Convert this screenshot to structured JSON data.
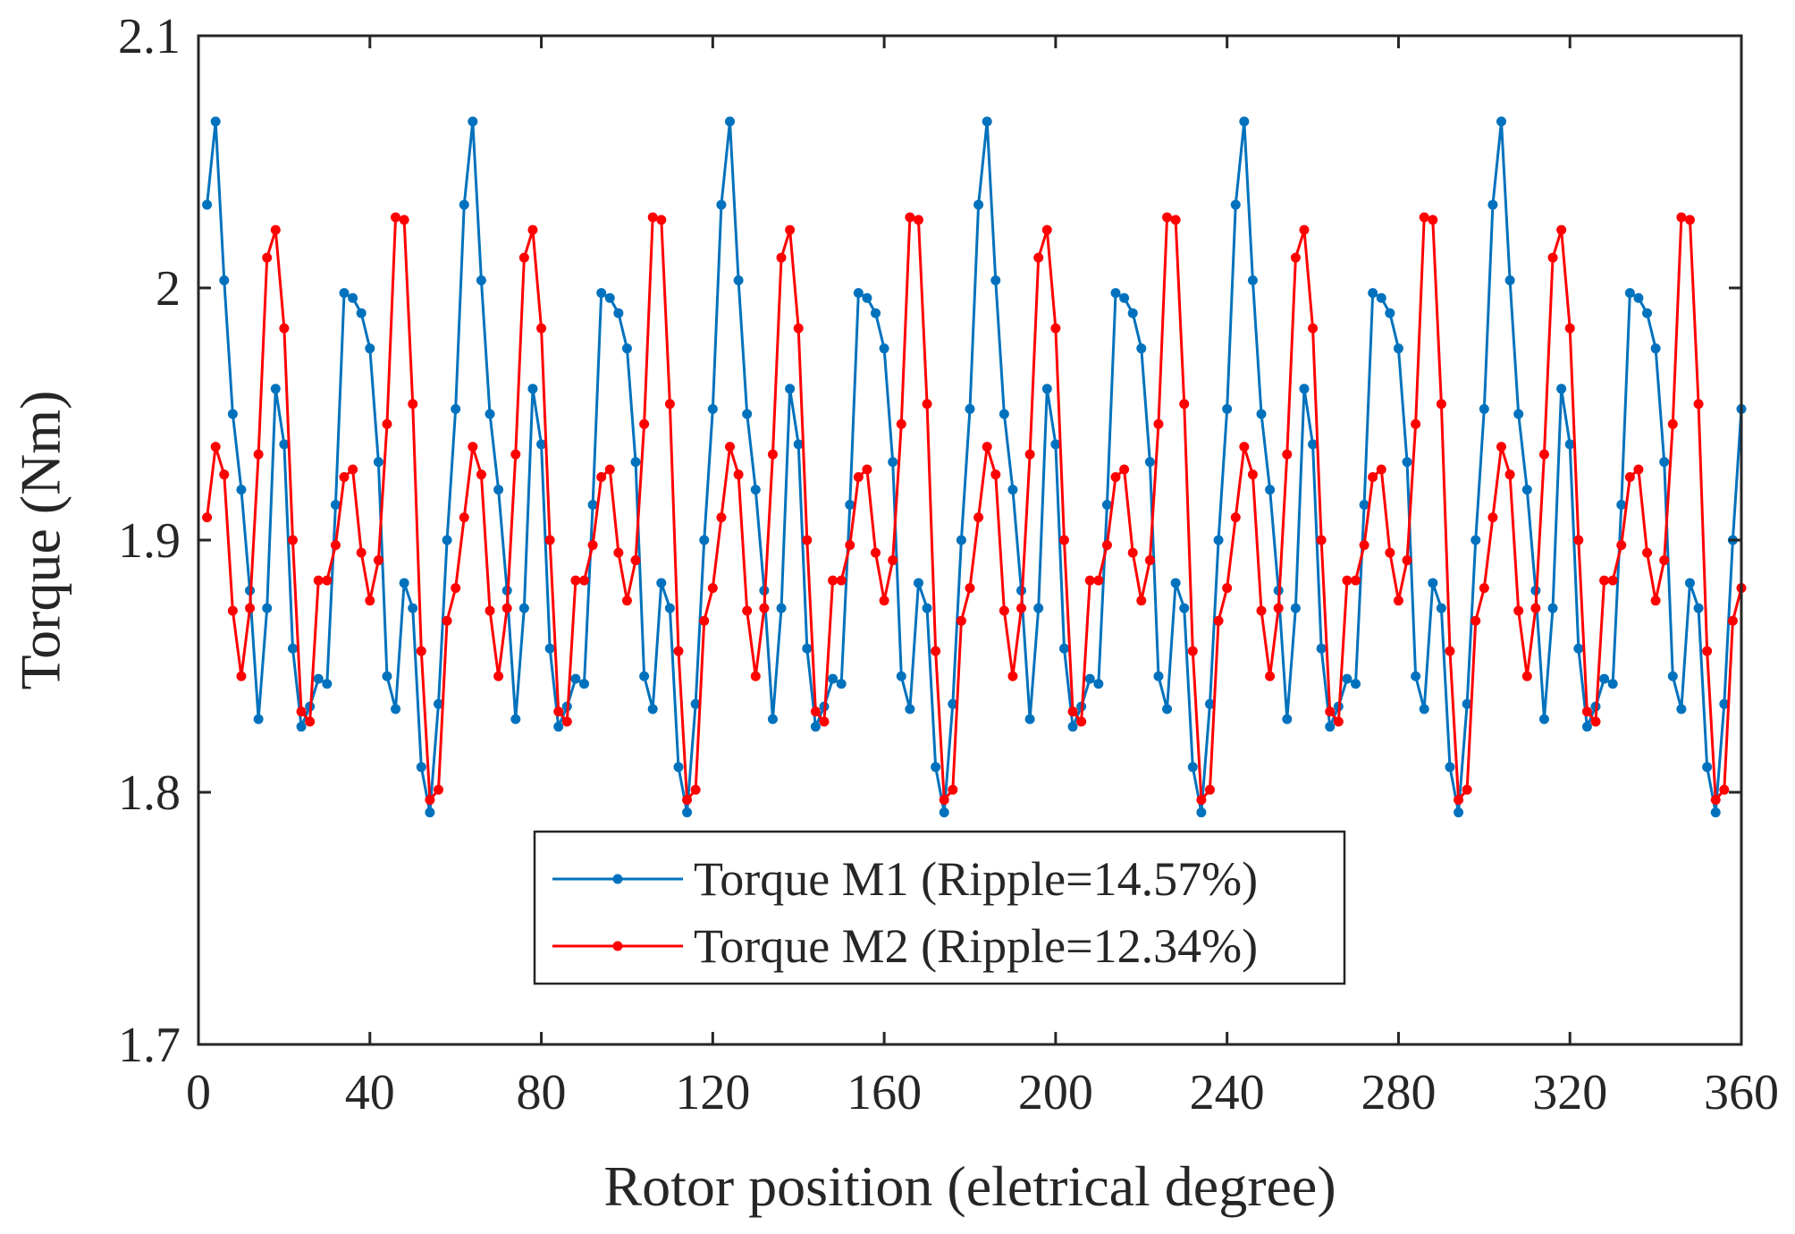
{
  "chart_data": {
    "type": "line",
    "title": "",
    "xlabel": "Rotor position (eletrical degree)",
    "ylabel": "Torque (Nm)",
    "xlim": [
      0,
      360
    ],
    "ylim": [
      1.7,
      2.1
    ],
    "xticks": [
      0,
      40,
      80,
      120,
      160,
      200,
      240,
      280,
      320,
      360
    ],
    "xtick_labels": [
      "0",
      "40",
      "80",
      "120",
      "160",
      "200",
      "240",
      "280",
      "320",
      "360"
    ],
    "yticks": [
      1.7,
      1.8,
      1.9,
      2.0,
      2.1
    ],
    "ytick_labels": [
      "1.7",
      "1.8",
      "1.9",
      "2",
      "2.1"
    ],
    "grid": false,
    "legend_position": "bottom-center",
    "x": [
      2,
      4,
      6,
      8,
      10,
      12,
      14,
      16,
      18,
      20,
      22,
      24,
      26,
      28,
      30,
      32,
      34,
      36,
      38,
      40,
      42,
      44,
      46,
      48,
      50,
      52,
      54,
      56,
      58,
      60,
      62,
      64,
      66,
      68,
      70,
      72,
      74,
      76,
      78,
      80,
      82,
      84,
      86,
      88,
      90,
      92,
      94,
      96,
      98,
      100,
      102,
      104,
      106,
      108,
      110,
      112,
      114,
      116,
      118,
      120,
      122,
      124,
      126,
      128,
      130,
      132,
      134,
      136,
      138,
      140,
      142,
      144,
      146,
      148,
      150,
      152,
      154,
      156,
      158,
      160,
      162,
      164,
      166,
      168,
      170,
      172,
      174,
      176,
      178,
      180,
      182,
      184,
      186,
      188,
      190,
      192,
      194,
      196,
      198,
      200,
      202,
      204,
      206,
      208,
      210,
      212,
      214,
      216,
      218,
      220,
      222,
      224,
      226,
      228,
      230,
      232,
      234,
      236,
      238,
      240,
      242,
      244,
      246,
      248,
      250,
      252,
      254,
      256,
      258,
      260,
      262,
      264,
      266,
      268,
      270,
      272,
      274,
      276,
      278,
      280,
      282,
      284,
      286,
      288,
      290,
      292,
      294,
      296,
      298,
      300,
      302,
      304,
      306,
      308,
      310,
      312,
      314,
      316,
      318,
      320,
      322,
      324,
      326,
      328,
      330,
      332,
      334,
      336,
      338,
      340,
      342,
      344,
      346,
      348,
      350,
      352,
      354,
      356,
      358,
      360
    ],
    "series": [
      {
        "name": "Torque M1 (Ripple=14.57%)",
        "color": "#0072BD",
        "values": [
          2.033,
          2.066,
          2.003,
          1.95,
          1.92,
          1.88,
          1.829,
          1.873,
          1.96,
          1.938,
          1.857,
          1.826,
          1.834,
          1.845,
          1.843,
          1.914,
          1.998,
          1.996,
          1.99,
          1.976,
          1.931,
          1.846,
          1.833,
          1.883,
          1.873,
          1.81,
          1.792,
          1.835,
          1.9,
          1.952,
          2.033,
          2.066,
          2.003,
          1.95,
          1.92,
          1.88,
          1.829,
          1.873,
          1.96,
          1.938,
          1.857,
          1.826,
          1.834,
          1.845,
          1.843,
          1.914,
          1.998,
          1.996,
          1.99,
          1.976,
          1.931,
          1.846,
          1.833,
          1.883,
          1.873,
          1.81,
          1.792,
          1.835,
          1.9,
          1.952,
          2.033,
          2.066,
          2.003,
          1.95,
          1.92,
          1.88,
          1.829,
          1.873,
          1.96,
          1.938,
          1.857,
          1.826,
          1.834,
          1.845,
          1.843,
          1.914,
          1.998,
          1.996,
          1.99,
          1.976,
          1.931,
          1.846,
          1.833,
          1.883,
          1.873,
          1.81,
          1.792,
          1.835,
          1.9,
          1.952,
          2.033,
          2.066,
          2.003,
          1.95,
          1.92,
          1.88,
          1.829,
          1.873,
          1.96,
          1.938,
          1.857,
          1.826,
          1.834,
          1.845,
          1.843,
          1.914,
          1.998,
          1.996,
          1.99,
          1.976,
          1.931,
          1.846,
          1.833,
          1.883,
          1.873,
          1.81,
          1.792,
          1.835,
          1.9,
          1.952,
          2.033,
          2.066,
          2.003,
          1.95,
          1.92,
          1.88,
          1.829,
          1.873,
          1.96,
          1.938,
          1.857,
          1.826,
          1.834,
          1.845,
          1.843,
          1.914,
          1.998,
          1.996,
          1.99,
          1.976,
          1.931,
          1.846,
          1.833,
          1.883,
          1.873,
          1.81,
          1.792,
          1.835,
          1.9,
          1.952,
          2.033,
          2.066,
          2.003,
          1.95,
          1.92,
          1.88,
          1.829,
          1.873,
          1.96,
          1.938,
          1.857,
          1.826,
          1.834,
          1.845,
          1.843,
          1.914,
          1.998,
          1.996,
          1.99,
          1.976,
          1.931,
          1.846,
          1.833,
          1.883,
          1.873,
          1.81,
          1.792,
          1.835,
          1.9,
          1.952
        ]
      },
      {
        "name": "Torque M2 (Ripple=12.34%)",
        "color": "#FF0000",
        "values": [
          1.909,
          1.937,
          1.926,
          1.872,
          1.846,
          1.873,
          1.934,
          2.012,
          2.023,
          1.984,
          1.9,
          1.832,
          1.828,
          1.884,
          1.884,
          1.898,
          1.925,
          1.928,
          1.895,
          1.876,
          1.892,
          1.946,
          2.028,
          2.027,
          1.954,
          1.856,
          1.797,
          1.801,
          1.868,
          1.881,
          1.909,
          1.937,
          1.926,
          1.872,
          1.846,
          1.873,
          1.934,
          2.012,
          2.023,
          1.984,
          1.9,
          1.832,
          1.828,
          1.884,
          1.884,
          1.898,
          1.925,
          1.928,
          1.895,
          1.876,
          1.892,
          1.946,
          2.028,
          2.027,
          1.954,
          1.856,
          1.797,
          1.801,
          1.868,
          1.881,
          1.909,
          1.937,
          1.926,
          1.872,
          1.846,
          1.873,
          1.934,
          2.012,
          2.023,
          1.984,
          1.9,
          1.832,
          1.828,
          1.884,
          1.884,
          1.898,
          1.925,
          1.928,
          1.895,
          1.876,
          1.892,
          1.946,
          2.028,
          2.027,
          1.954,
          1.856,
          1.797,
          1.801,
          1.868,
          1.881,
          1.909,
          1.937,
          1.926,
          1.872,
          1.846,
          1.873,
          1.934,
          2.012,
          2.023,
          1.984,
          1.9,
          1.832,
          1.828,
          1.884,
          1.884,
          1.898,
          1.925,
          1.928,
          1.895,
          1.876,
          1.892,
          1.946,
          2.028,
          2.027,
          1.954,
          1.856,
          1.797,
          1.801,
          1.868,
          1.881,
          1.909,
          1.937,
          1.926,
          1.872,
          1.846,
          1.873,
          1.934,
          2.012,
          2.023,
          1.984,
          1.9,
          1.832,
          1.828,
          1.884,
          1.884,
          1.898,
          1.925,
          1.928,
          1.895,
          1.876,
          1.892,
          1.946,
          2.028,
          2.027,
          1.954,
          1.856,
          1.797,
          1.801,
          1.868,
          1.881,
          1.909,
          1.937,
          1.926,
          1.872,
          1.846,
          1.873,
          1.934,
          2.012,
          2.023,
          1.984,
          1.9,
          1.832,
          1.828,
          1.884,
          1.884,
          1.898,
          1.925,
          1.928,
          1.895,
          1.876,
          1.892,
          1.946,
          2.028,
          2.027,
          1.954,
          1.856,
          1.797,
          1.801,
          1.868,
          1.881
        ]
      }
    ]
  }
}
